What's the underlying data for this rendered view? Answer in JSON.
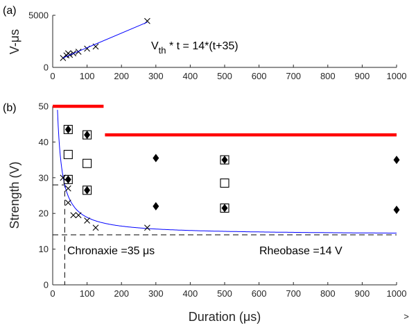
{
  "chart_data": [
    {
      "panel_label": "(a)",
      "type": "scatter",
      "ylabel": "V-μs",
      "xlim": [
        0,
        1000
      ],
      "ylim": [
        0,
        5000
      ],
      "xticks": [
        "0",
        "100",
        "200",
        "300",
        "400",
        "500",
        "600",
        "700",
        "800",
        "900",
        "1000"
      ],
      "yticks": [
        "0",
        "5000"
      ],
      "annotation": "Vₜₕ * t = 14*(t+35)",
      "annotation_main": "V",
      "annotation_sub": "th",
      "annotation_rest": " * t = 14*(t+35)",
      "series": [
        {
          "marker": "x",
          "points": [
            [
              30,
              900
            ],
            [
              40,
              1150
            ],
            [
              45,
              1350
            ],
            [
              50,
              1200
            ],
            [
              60,
              1350
            ],
            [
              75,
              1500
            ],
            [
              100,
              1800
            ],
            [
              125,
              2000
            ],
            [
              275,
              4450
            ]
          ]
        },
        {
          "marker": "fit-line",
          "color": "#0000ff",
          "points": [
            [
              30,
              910
            ],
            [
              275,
              4340
            ]
          ]
        }
      ]
    },
    {
      "panel_label": "(b)",
      "type": "scatter",
      "xlabel": "Duration (μs)",
      "ylabel": "Strength (V)",
      "xlim": [
        0,
        1000
      ],
      "ylim": [
        0,
        50
      ],
      "xticks": [
        "0",
        "100",
        "200",
        "300",
        "400",
        "500",
        "600",
        "700",
        "800",
        "900",
        "1000"
      ],
      "yticks": [
        "0",
        "10",
        "20",
        "30",
        "40",
        "50"
      ],
      "chronaxie_label": "Chronaxie =35 μs",
      "rheobase_label": "Rheobase =14 V",
      "corner_mark": ">",
      "series": [
        {
          "marker": "x",
          "points": [
            [
              30,
              30
            ],
            [
              45,
              27
            ],
            [
              45,
              23
            ],
            [
              60,
              19.5
            ],
            [
              75,
              19.5
            ],
            [
              100,
              18
            ],
            [
              125,
              16
            ],
            [
              275,
              16
            ]
          ]
        },
        {
          "marker": "square",
          "points": [
            [
              45,
              36.5
            ],
            [
              100,
              34
            ],
            [
              500,
              28.5
            ]
          ]
        },
        {
          "marker": "square-diamond",
          "points": [
            [
              45,
              43.5
            ],
            [
              45,
              29.5
            ],
            [
              100,
              42
            ],
            [
              100,
              26.5
            ],
            [
              500,
              35
            ],
            [
              500,
              21.5
            ]
          ]
        },
        {
          "marker": "diamond",
          "points": [
            [
              300,
              35.5
            ],
            [
              300,
              22
            ],
            [
              1000,
              35
            ],
            [
              1000,
              21
            ]
          ]
        },
        {
          "marker": "strength-duration-curve",
          "color": "#0000ff",
          "rheobase": 14,
          "chronaxie": 35
        },
        {
          "marker": "red-bar",
          "color": "#ff0000",
          "points": [
            [
              0,
              50
            ],
            [
              148,
              50
            ]
          ]
        },
        {
          "marker": "red-bar",
          "color": "#ff0000",
          "points": [
            [
              152,
              42
            ],
            [
              1000,
              42
            ]
          ]
        },
        {
          "marker": "dashed-line",
          "points": [
            [
              0,
              14
            ],
            [
              1000,
              14
            ]
          ]
        },
        {
          "marker": "dashed-line",
          "points": [
            [
              0,
              28
            ],
            [
              35,
              28
            ],
            [
              35,
              0
            ]
          ]
        }
      ]
    }
  ]
}
